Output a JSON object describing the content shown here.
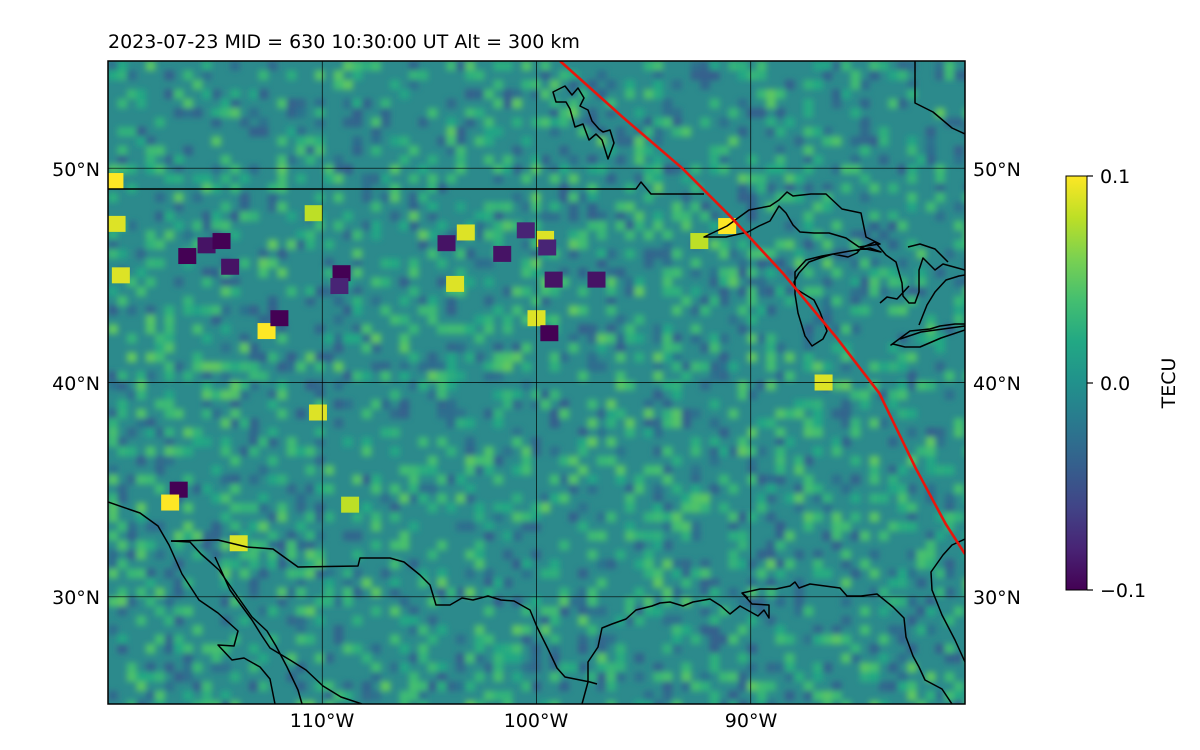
{
  "title": "2023-07-23  MID = 630    10:30:00  UT  Alt = 300 km",
  "map": {
    "lon_range": [
      -120,
      -80
    ],
    "lat_range": [
      25,
      55
    ],
    "lon_ticks": [
      -110,
      -100,
      -90
    ],
    "lat_ticks": [
      30,
      40,
      50
    ],
    "lon_tick_labels": [
      "110°W",
      "100°W",
      "90°W"
    ],
    "lat_tick_labels_left": [
      "30°N",
      "40°N",
      "50°N"
    ],
    "lat_tick_labels_right": [
      "30°N",
      "40°N",
      "50°N"
    ],
    "grid": true,
    "terminator_color": "#e8160c",
    "coastline_color": "#000000",
    "terminator_line": [
      [
        -98.9,
        55
      ],
      [
        -96.0,
        52.4
      ],
      [
        -93.2,
        50.0
      ],
      [
        -91.0,
        47.8
      ],
      [
        -88.5,
        45.1
      ],
      [
        -86.0,
        42.1
      ],
      [
        -84.0,
        39.5
      ],
      [
        -82.3,
        36.0
      ],
      [
        -80.9,
        33.4
      ],
      [
        -80,
        32
      ]
    ]
  },
  "colorbar": {
    "label": "TECU",
    "min": -0.1,
    "max": 0.1,
    "tick_labels": [
      "0.1",
      "0.0",
      "−0.1"
    ],
    "colormap": "viridis"
  },
  "tec_hotspots": [
    {
      "lon": -119.7,
      "lat": 49.4,
      "value": 0.1
    },
    {
      "lon": -119.6,
      "lat": 47.4,
      "value": 0.09
    },
    {
      "lon": -119.4,
      "lat": 45.0,
      "value": 0.09
    },
    {
      "lon": -116.3,
      "lat": 45.9,
      "value": -0.1
    },
    {
      "lon": -115.4,
      "lat": 46.4,
      "value": -0.09
    },
    {
      "lon": -114.7,
      "lat": 46.6,
      "value": -0.1
    },
    {
      "lon": -114.3,
      "lat": 45.4,
      "value": -0.09
    },
    {
      "lon": -112.6,
      "lat": 42.4,
      "value": 0.1
    },
    {
      "lon": -112.0,
      "lat": 43.0,
      "value": -0.1
    },
    {
      "lon": -110.4,
      "lat": 47.9,
      "value": 0.08
    },
    {
      "lon": -109.1,
      "lat": 45.1,
      "value": -0.1
    },
    {
      "lon": -109.2,
      "lat": 44.5,
      "value": -0.08
    },
    {
      "lon": -110.2,
      "lat": 38.6,
      "value": 0.09
    },
    {
      "lon": -116.7,
      "lat": 35.0,
      "value": -0.1
    },
    {
      "lon": -117.1,
      "lat": 34.4,
      "value": 0.1
    },
    {
      "lon": -108.7,
      "lat": 34.3,
      "value": 0.08
    },
    {
      "lon": -113.9,
      "lat": 32.5,
      "value": 0.09
    },
    {
      "lon": -104.2,
      "lat": 46.5,
      "value": -0.09
    },
    {
      "lon": -103.3,
      "lat": 47.0,
      "value": 0.09
    },
    {
      "lon": -103.8,
      "lat": 44.6,
      "value": 0.09
    },
    {
      "lon": -101.6,
      "lat": 46.0,
      "value": -0.09
    },
    {
      "lon": -99.6,
      "lat": 46.7,
      "value": 0.09
    },
    {
      "lon": -99.5,
      "lat": 46.3,
      "value": -0.08
    },
    {
      "lon": -100.5,
      "lat": 47.1,
      "value": -0.08
    },
    {
      "lon": -99.2,
      "lat": 44.8,
      "value": -0.09
    },
    {
      "lon": -100.0,
      "lat": 43.0,
      "value": 0.09
    },
    {
      "lon": -99.4,
      "lat": 42.3,
      "value": -0.1
    },
    {
      "lon": -97.2,
      "lat": 44.8,
      "value": -0.09
    },
    {
      "lon": -91.1,
      "lat": 47.3,
      "value": 0.1
    },
    {
      "lon": -92.4,
      "lat": 46.6,
      "value": 0.08
    },
    {
      "lon": -86.6,
      "lat": 40.0,
      "value": 0.09
    }
  ]
}
